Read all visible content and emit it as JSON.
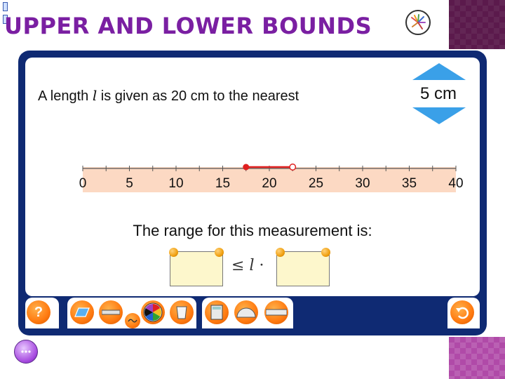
{
  "header": {
    "title": "UPPER AND LOWER BOUNDS"
  },
  "question": {
    "text_before": "A length ",
    "variable": "l",
    "text_after": " is given as 20 cm to the nearest"
  },
  "unit_selector": {
    "value": "5 cm"
  },
  "number_line": {
    "ticks": [
      "0",
      "5",
      "10",
      "15",
      "20",
      "25",
      "30",
      "35",
      "40"
    ],
    "range_start": 17.5,
    "range_end": 22.5
  },
  "range_prompt": "The range for this measurement is:",
  "inequality": {
    "symbol": "≤",
    "variable": "l",
    "trailing": "·"
  },
  "toolbar": {
    "help_label": "?"
  },
  "colors": {
    "title": "#7a1fa2",
    "frame": "#0f2a73",
    "accent": "#ff7a10",
    "arrow": "#3aa0e8"
  }
}
